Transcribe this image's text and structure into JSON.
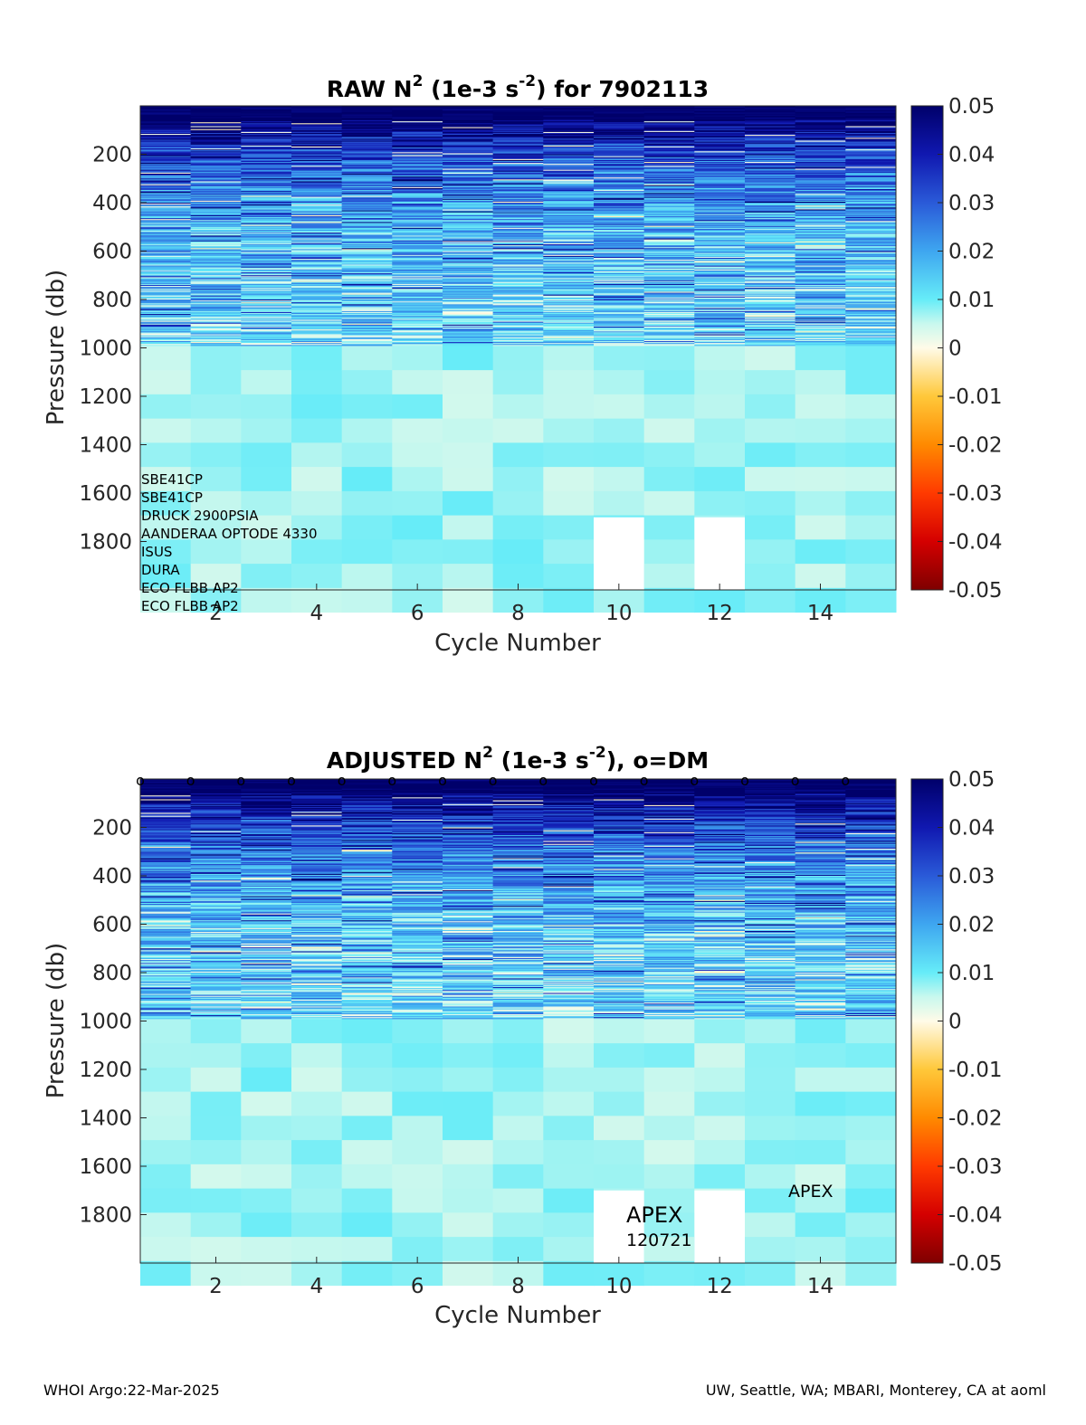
{
  "footer": {
    "left": "WHOI Argo:22-Mar-2025",
    "right": "UW, Seattle, WA; MBARI, Monterey, CA at aoml"
  },
  "chart_data": [
    {
      "type": "heatmap",
      "title": "RAW N",
      "title_sup1": "2",
      "title_mid": " (1e-3 s",
      "title_sup2": "-2",
      "title_end": ") for 7902113",
      "xlabel": "Cycle Number",
      "ylabel": "Pressure (db)",
      "x": [
        1,
        15
      ],
      "xticks": [
        2,
        4,
        6,
        8,
        10,
        12,
        14
      ],
      "ylim": [
        2000,
        0
      ],
      "yticks": [
        200,
        400,
        600,
        800,
        1000,
        1200,
        1400,
        1600,
        1800
      ],
      "colorbar": {
        "range": [
          -0.05,
          0.05
        ],
        "ticks": [
          "0.05",
          "0.04",
          "0.03",
          "0.02",
          "0.01",
          "0",
          "-0.01",
          "-0.02",
          "-0.03",
          "-0.04",
          "-0.05"
        ]
      },
      "missing_cells": [
        {
          "cycle": 10,
          "p_from": 1700,
          "p_to": 2000
        },
        {
          "cycle": 12,
          "p_from": 1700,
          "p_to": 2000
        }
      ],
      "instrument_labels": [
        "SBE41CP",
        "SBE41CP",
        "DRUCK 2900PSIA",
        "AANDERAA OPTODE 4330",
        "ISUS",
        "DURA",
        "ECO FLBB AP2",
        "ECO FLBB AP2"
      ]
    },
    {
      "type": "heatmap",
      "title": "ADJUSTED N",
      "title_sup1": "2",
      "title_mid": " (1e-3 s",
      "title_sup2": "-2",
      "title_end": "), o=DM",
      "xlabel": "Cycle Number",
      "ylabel": "Pressure (db)",
      "x": [
        1,
        15
      ],
      "xticks": [
        2,
        4,
        6,
        8,
        10,
        12,
        14
      ],
      "ylim": [
        2000,
        0
      ],
      "yticks": [
        200,
        400,
        600,
        800,
        1000,
        1200,
        1400,
        1600,
        1800
      ],
      "colorbar": {
        "range": [
          -0.05,
          0.05
        ],
        "ticks": [
          "0.05",
          "0.04",
          "0.03",
          "0.02",
          "0.01",
          "0",
          "-0.01",
          "-0.02",
          "-0.03",
          "-0.04",
          "-0.05"
        ]
      },
      "dm_markers": [
        1,
        2,
        3,
        4,
        5,
        6,
        7,
        8,
        9,
        10,
        11,
        12,
        13,
        14,
        15
      ],
      "dm_marker_text": "o",
      "missing_cells": [
        {
          "cycle": 10,
          "p_from": 1700,
          "p_to": 2000
        },
        {
          "cycle": 12,
          "p_from": 1700,
          "p_to": 2000
        }
      ],
      "annotations": [
        "APEX",
        "120721",
        "APEX"
      ]
    }
  ]
}
